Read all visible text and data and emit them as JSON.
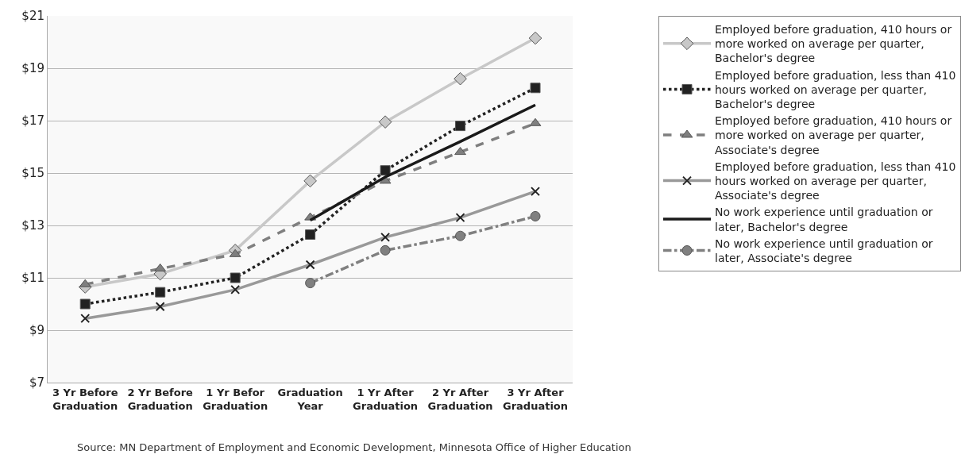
{
  "chart_data": {
    "type": "line",
    "categories": [
      "3 Yr Before Graduation",
      "2 Yr Before Graduation",
      "1 Yr Befor Graduation",
      "Graduation Year",
      "1 Yr After Graduation",
      "2 Yr After Graduation",
      "3 Yr After Graduation"
    ],
    "ylim": [
      7,
      21
    ],
    "yticks": [
      {
        "value": 7,
        "label": "$7"
      },
      {
        "value": 9,
        "label": "$9"
      },
      {
        "value": 11,
        "label": "$11"
      },
      {
        "value": 13,
        "label": "$13"
      },
      {
        "value": 15,
        "label": "$15"
      },
      {
        "value": 17,
        "label": "$17"
      },
      {
        "value": 19,
        "label": "$19"
      },
      {
        "value": 21,
        "label": "$21"
      }
    ],
    "grid": "y",
    "legend": "right",
    "series": [
      {
        "name": "Employed before graduation, 410 hours or more worked on average per quarter, Bachelor's degree",
        "color": "#c8c8c8",
        "marker": "diamond",
        "line_style": "solid",
        "values": [
          10.65,
          11.15,
          12.05,
          14.7,
          16.95,
          18.6,
          20.15
        ]
      },
      {
        "name": "Employed before graduation, less than 410 hours worked on average per quarter, Bachelor's degree",
        "color": "#222222",
        "marker": "square",
        "line_style": "dotted",
        "values": [
          10.0,
          10.45,
          11.0,
          12.65,
          15.1,
          16.8,
          18.25
        ]
      },
      {
        "name": "Employed before graduation, 410 hours or more worked on average per quarter, Associate's degree",
        "color": "#7f7f7f",
        "marker": "triangle",
        "line_style": "dashed",
        "values": [
          10.75,
          11.35,
          11.9,
          13.3,
          14.7,
          15.8,
          16.9
        ]
      },
      {
        "name": "Employed before graduation, less than 410 hours worked on average per quarter, Associate's degree",
        "color": "#999999",
        "marker": "cross",
        "line_style": "solid",
        "values": [
          9.45,
          9.9,
          10.55,
          11.5,
          12.55,
          13.3,
          14.3
        ]
      },
      {
        "name": "No work experience until graduation or later, Bachelor's degree",
        "color": "#1a1a1a",
        "marker": "none",
        "line_style": "solid",
        "values": [
          null,
          null,
          null,
          13.2,
          14.85,
          16.2,
          17.6
        ]
      },
      {
        "name": "No work experience until graduation or later, Associate's degree",
        "color": "#808080",
        "marker": "circle",
        "line_style": "dashdot",
        "values": [
          null,
          null,
          null,
          10.8,
          12.05,
          12.6,
          13.35
        ]
      }
    ],
    "annotations": [
      "Source: MN Department of Employment and Economic Development, Minnesota Office of Higher Education"
    ]
  }
}
